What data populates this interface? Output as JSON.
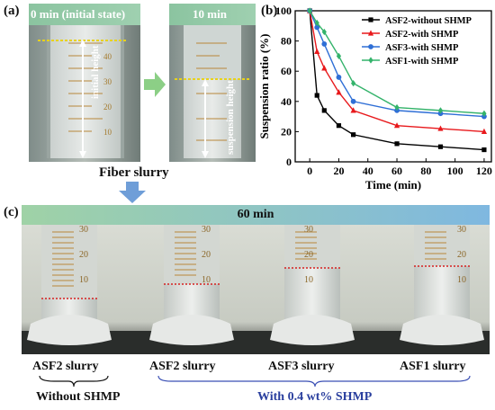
{
  "panels": {
    "a": "(a)",
    "b": "(b)",
    "c": "(c)"
  },
  "panel_a": {
    "left_title": "0 min (initial state)",
    "right_title": "10 min",
    "initial_height_label": "initial height",
    "suspension_height_label": "suspension height",
    "caption": "Fiber slurry",
    "scale_marks": [
      "40",
      "30",
      "20",
      "10"
    ]
  },
  "panel_c": {
    "time_title": "60 min",
    "cylinder_marks": [
      "30",
      "20",
      "10"
    ],
    "labels": [
      "ASF2 slurry",
      "ASF2 slurry",
      "ASF3 slurry",
      "ASF1 slurry"
    ],
    "group_without": "Without SHMP",
    "group_with": "With 0.4 wt% SHMP"
  },
  "chart_data": {
    "type": "line",
    "xlabel": "Time (min)",
    "ylabel": "Suspension ratio (%)",
    "xlim": [
      -10,
      125
    ],
    "ylim": [
      0,
      100
    ],
    "xticks": [
      0,
      20,
      40,
      60,
      80,
      100,
      120
    ],
    "yticks": [
      0,
      20,
      40,
      60,
      80,
      100
    ],
    "legend_position": "top-right",
    "series": [
      {
        "name": "ASF2-without SHMP",
        "color": "#000000",
        "marker": "square",
        "x": [
          0,
          5,
          10,
          20,
          30,
          60,
          90,
          120
        ],
        "y": [
          100,
          44,
          34,
          24,
          18,
          12,
          10,
          8
        ]
      },
      {
        "name": "ASF2-with SHMP",
        "color": "#e8191c",
        "marker": "triangle",
        "x": [
          0,
          5,
          10,
          20,
          30,
          60,
          90,
          120
        ],
        "y": [
          100,
          73,
          62,
          46,
          34,
          24,
          22,
          20
        ]
      },
      {
        "name": "ASF3-with SHMP",
        "color": "#2f6fd6",
        "marker": "circle",
        "x": [
          0,
          5,
          10,
          20,
          30,
          60,
          90,
          120
        ],
        "y": [
          100,
          89,
          78,
          56,
          40,
          34,
          32,
          30
        ]
      },
      {
        "name": "ASF1-with SHMP",
        "color": "#34b36b",
        "marker": "diamond",
        "x": [
          0,
          5,
          10,
          20,
          30,
          60,
          90,
          120
        ],
        "y": [
          100,
          92,
          86,
          70,
          52,
          36,
          34,
          32
        ]
      }
    ]
  }
}
